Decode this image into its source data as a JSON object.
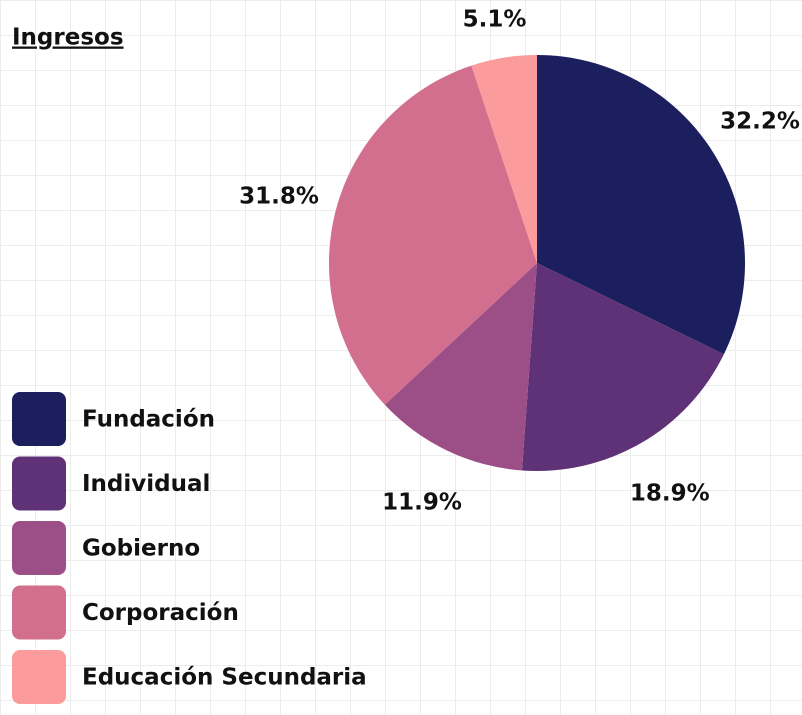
{
  "chart_data": {
    "type": "pie",
    "title": "Ingresos",
    "categories": [
      "Fundación",
      "Individual",
      "Gobierno",
      "Corporación",
      "Educación Secundaria"
    ],
    "values": [
      32.2,
      18.9,
      11.9,
      31.8,
      5.1
    ],
    "value_labels": [
      "32.2%",
      "18.9%",
      "11.9%",
      "31.8%",
      "5.1%"
    ],
    "colors": [
      "#1b1f5e",
      "#5f3277",
      "#9c4f87",
      "#d36f8e",
      "#fc9b9b"
    ]
  }
}
